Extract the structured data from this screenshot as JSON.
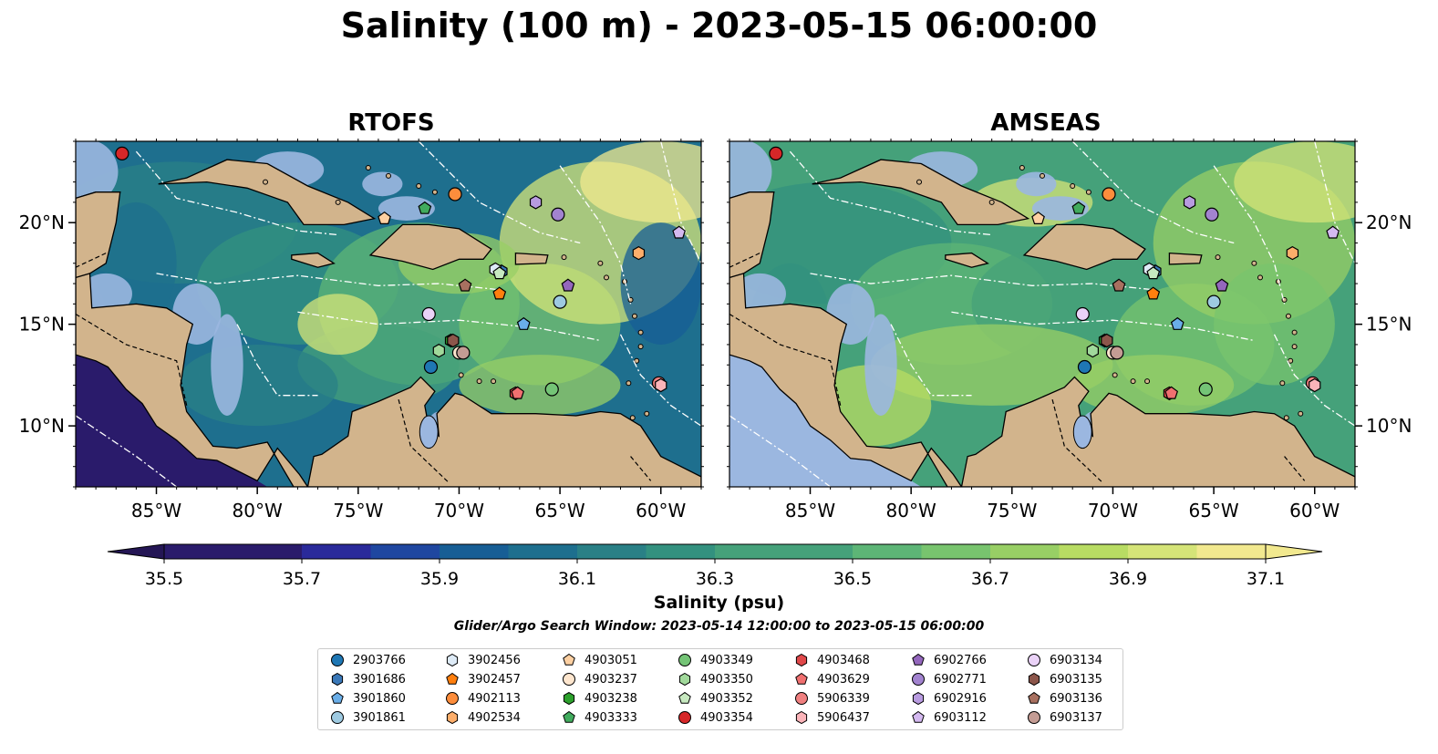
{
  "title": "Salinity (100 m) - 2023-05-15 06:00:00",
  "panels": [
    {
      "title": "RTOFS"
    },
    {
      "title": "AMSEAS"
    }
  ],
  "axes": {
    "lon_ticks": [
      "85°W",
      "80°W",
      "75°W",
      "70°W",
      "65°W",
      "60°W"
    ],
    "lat_ticks_left": [
      "20°N",
      "15°N",
      "10°N"
    ],
    "lat_ticks_right": [
      "20°N",
      "15°N",
      "10°N"
    ]
  },
  "colors": {
    "land": "#d2b48c",
    "shallow_water": "#9bb7e0",
    "colormap": [
      "#2a1b6b",
      "#2a2a9a",
      "#1f47a0",
      "#175e95",
      "#1e6f8e",
      "#2a8086",
      "#33917f",
      "#45a17a",
      "#5db576",
      "#78c46e",
      "#98cf65",
      "#b8dc63",
      "#d5e478",
      "#f2e98f"
    ]
  },
  "chart_data": {
    "type": "heatmap",
    "variable": "Salinity (psu)",
    "depth": "100 m",
    "time": "2023-05-15 06:00:00",
    "panels": [
      "RTOFS",
      "AMSEAS"
    ],
    "xlim": [
      -89,
      -58
    ],
    "ylim": [
      7,
      24
    ],
    "colorbar": {
      "label": "Salinity (psu)",
      "min": 35.5,
      "max": 37.1,
      "step": 0.1,
      "ticks": [
        "35.5",
        "35.7",
        "35.9",
        "36.1",
        "36.3",
        "36.5",
        "36.7",
        "36.9",
        "37.1"
      ],
      "extend": "both"
    },
    "subtitle": "Glider/Argo Search Window: 2023-05-14 12:00:00 to 2023-05-15 06:00:00",
    "floats": [
      {
        "id": "2903766",
        "marker": "circle",
        "color": "#1f77b4",
        "lon": -71.4,
        "lat": 12.9
      },
      {
        "id": "3901686",
        "marker": "hexagon",
        "color": "#3a78b8",
        "lon": -67.9,
        "lat": 17.6
      },
      {
        "id": "3901860",
        "marker": "pentagon",
        "color": "#6aaee8",
        "lon": -66.8,
        "lat": 15.0
      },
      {
        "id": "3901861",
        "marker": "circle",
        "color": "#9ecae1",
        "lon": -65.0,
        "lat": 16.1
      },
      {
        "id": "3902456",
        "marker": "hexagon",
        "color": "#deebf7",
        "lon": -68.2,
        "lat": 17.7
      },
      {
        "id": "3902457",
        "marker": "pentagon",
        "color": "#ff7f0e",
        "lon": -68.0,
        "lat": 16.5
      },
      {
        "id": "4902113",
        "marker": "circle",
        "color": "#fd8d3c",
        "lon": -70.2,
        "lat": 21.4
      },
      {
        "id": "4902534",
        "marker": "hexagon",
        "color": "#fdae6b",
        "lon": -61.1,
        "lat": 18.5
      },
      {
        "id": "4903051",
        "marker": "pentagon",
        "color": "#fdd0a2",
        "lon": -73.7,
        "lat": 20.2
      },
      {
        "id": "4903237",
        "marker": "circle",
        "color": "#fee6ce",
        "lon": -70.0,
        "lat": 13.6
      },
      {
        "id": "4903238",
        "marker": "hexagon",
        "color": "#2ca02c",
        "lon": -70.4,
        "lat": 14.2
      },
      {
        "id": "4903333",
        "marker": "pentagon",
        "color": "#41ab5d",
        "lon": -71.7,
        "lat": 20.7
      },
      {
        "id": "4903349",
        "marker": "circle",
        "color": "#74c476",
        "lon": -65.4,
        "lat": 11.8
      },
      {
        "id": "4903350",
        "marker": "hexagon",
        "color": "#a1d99b",
        "lon": -71.0,
        "lat": 13.7
      },
      {
        "id": "4903352",
        "marker": "pentagon",
        "color": "#c7e9c0",
        "lon": -68.0,
        "lat": 17.5
      },
      {
        "id": "4903354",
        "marker": "circle",
        "color": "#d62728",
        "lon": -86.7,
        "lat": 23.4
      },
      {
        "id": "4903468",
        "marker": "hexagon",
        "color": "#e0484a",
        "lon": -67.2,
        "lat": 11.6
      },
      {
        "id": "4903629",
        "marker": "pentagon",
        "color": "#f07070",
        "lon": -67.1,
        "lat": 11.6
      },
      {
        "id": "5906339",
        "marker": "circle",
        "color": "#f08080",
        "lon": -60.1,
        "lat": 12.1
      },
      {
        "id": "5906437",
        "marker": "hexagon",
        "color": "#fbb4b9",
        "lon": -60.0,
        "lat": 12.0
      },
      {
        "id": "6902766",
        "marker": "pentagon",
        "color": "#9467bd",
        "lon": -64.6,
        "lat": 16.9
      },
      {
        "id": "6902771",
        "marker": "circle",
        "color": "#a283cf",
        "lon": -65.1,
        "lat": 20.4
      },
      {
        "id": "6902916",
        "marker": "hexagon",
        "color": "#b89be0",
        "lon": -66.2,
        "lat": 21.0
      },
      {
        "id": "6903112",
        "marker": "pentagon",
        "color": "#d4b9f0",
        "lon": -59.1,
        "lat": 19.5
      },
      {
        "id": "6903134",
        "marker": "circle",
        "color": "#ead2f7",
        "lon": -71.5,
        "lat": 15.5
      },
      {
        "id": "6903135",
        "marker": "hexagon",
        "color": "#8c564b",
        "lon": -70.3,
        "lat": 14.2
      },
      {
        "id": "6903136",
        "marker": "pentagon",
        "color": "#a87060",
        "lon": -69.7,
        "lat": 16.9
      },
      {
        "id": "6903137",
        "marker": "circle",
        "color": "#c49c94",
        "lon": -69.8,
        "lat": 13.6
      }
    ]
  }
}
